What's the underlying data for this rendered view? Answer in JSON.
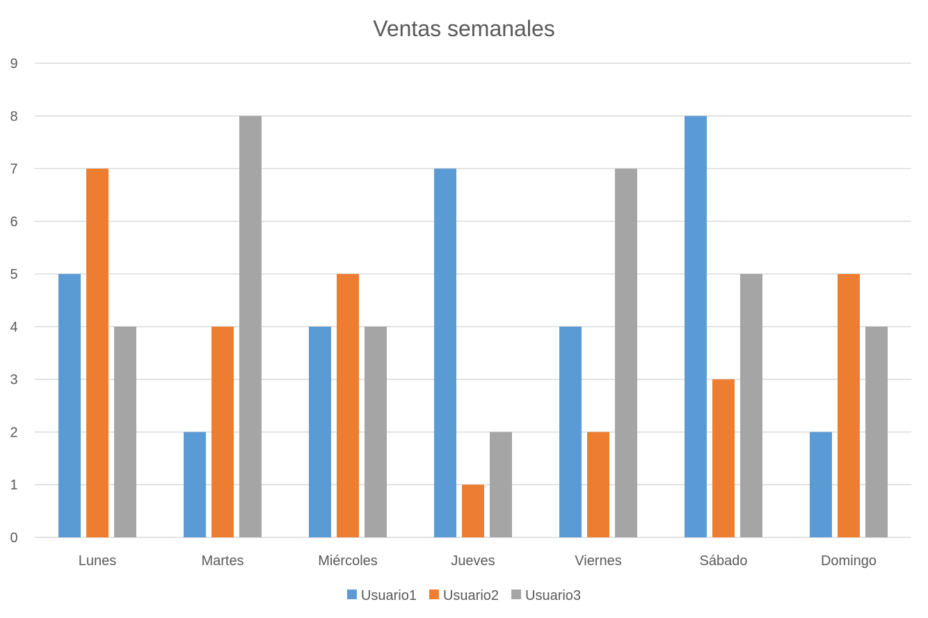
{
  "chart_data": {
    "type": "bar",
    "title": "Ventas semanales",
    "xlabel": "",
    "ylabel": "",
    "ylim": [
      0,
      9
    ],
    "yticks": [
      "0",
      "1",
      "2",
      "3",
      "4",
      "5",
      "6",
      "7",
      "8",
      "9"
    ],
    "grid": true,
    "legend_position": "bottom",
    "categories": [
      "Lunes",
      "Martes",
      "Miércoles",
      "Jueves",
      "Viernes",
      "Sábado",
      "Domingo"
    ],
    "series": [
      {
        "name": "Usuario1",
        "color": "#5B9BD5",
        "values": [
          5,
          2,
          4,
          7,
          4,
          8,
          2
        ]
      },
      {
        "name": "Usuario2",
        "color": "#ED7D31",
        "values": [
          7,
          4,
          5,
          1,
          2,
          3,
          5
        ]
      },
      {
        "name": "Usuario3",
        "color": "#A5A5A5",
        "values": [
          4,
          8,
          4,
          2,
          7,
          5,
          4
        ]
      }
    ]
  }
}
